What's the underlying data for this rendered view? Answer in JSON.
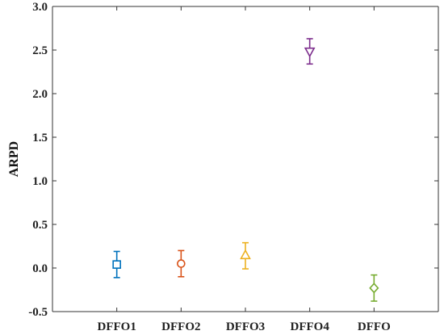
{
  "chart_data": {
    "type": "scatter",
    "subtype": "point-with-error-bars",
    "title": "",
    "xlabel": "",
    "ylabel": "ARPD",
    "ylim": [
      -0.5,
      3.0
    ],
    "yticks": [
      -0.5,
      0.0,
      0.5,
      1.0,
      1.5,
      2.0,
      2.5,
      3.0
    ],
    "ytick_labels": [
      "-0.5",
      "0.0",
      "0.5",
      "1.0",
      "1.5",
      "2.0",
      "2.5",
      "3.0"
    ],
    "categories": [
      "DFFO1",
      "DFFO2",
      "DFFO3",
      "DFFO4",
      "DFFO"
    ],
    "grid": false,
    "series": [
      {
        "category": "DFFO1",
        "value": 0.04,
        "lower": -0.11,
        "upper": 0.19,
        "marker": "square",
        "color": "#0072BD"
      },
      {
        "category": "DFFO2",
        "value": 0.05,
        "lower": -0.1,
        "upper": 0.2,
        "marker": "circle",
        "color": "#D95319"
      },
      {
        "category": "DFFO3",
        "value": 0.15,
        "lower": -0.01,
        "upper": 0.29,
        "marker": "triangle-up",
        "color": "#EDB120"
      },
      {
        "category": "DFFO4",
        "value": 2.48,
        "lower": 2.34,
        "upper": 2.63,
        "marker": "triangle-down",
        "color": "#7E2F8E"
      },
      {
        "category": "DFFO",
        "value": -0.23,
        "lower": -0.38,
        "upper": -0.08,
        "marker": "diamond",
        "color": "#77AC30"
      }
    ]
  }
}
